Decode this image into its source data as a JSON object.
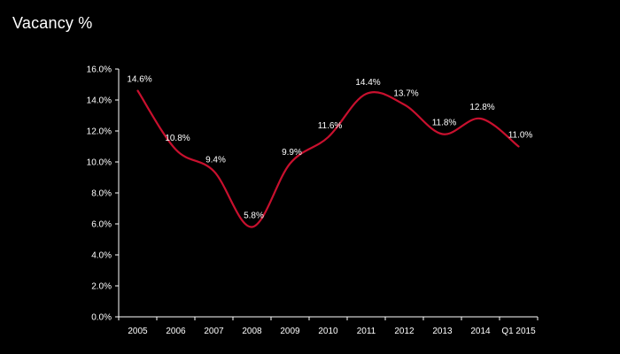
{
  "title": "Vacancy %",
  "chart_data": {
    "type": "line",
    "title": "Vacancy %",
    "xlabel": "",
    "ylabel": "",
    "categories": [
      "2005",
      "2006",
      "2007",
      "2008",
      "2009",
      "2010",
      "2011",
      "2012",
      "2013",
      "2014",
      "Q1 2015"
    ],
    "series": [
      {
        "values": [
          14.6,
          10.8,
          9.4,
          5.8,
          9.9,
          11.6,
          14.4,
          13.7,
          11.8,
          12.8,
          11.0
        ],
        "color": "#c8102e",
        "data_labels": [
          "14.6%",
          "10.8%",
          "9.4%",
          "5.8%",
          "9.9%",
          "11.6%",
          "14.4%",
          "13.7%",
          "11.8%",
          "12.8%",
          "11.0%"
        ]
      }
    ],
    "ylim": [
      0,
      16
    ],
    "yticks": [
      0,
      2,
      4,
      6,
      8,
      10,
      12,
      14,
      16
    ],
    "ytick_labels": [
      "0.0%",
      "2.0%",
      "4.0%",
      "6.0%",
      "8.0%",
      "10.0%",
      "12.0%",
      "14.0%",
      "16.0%"
    ],
    "grid": false,
    "legend": "none",
    "smooth": true
  },
  "colors": {
    "background": "#000000",
    "text": "#ffffff",
    "axis": "#ffffff",
    "line": "#c8102e"
  }
}
